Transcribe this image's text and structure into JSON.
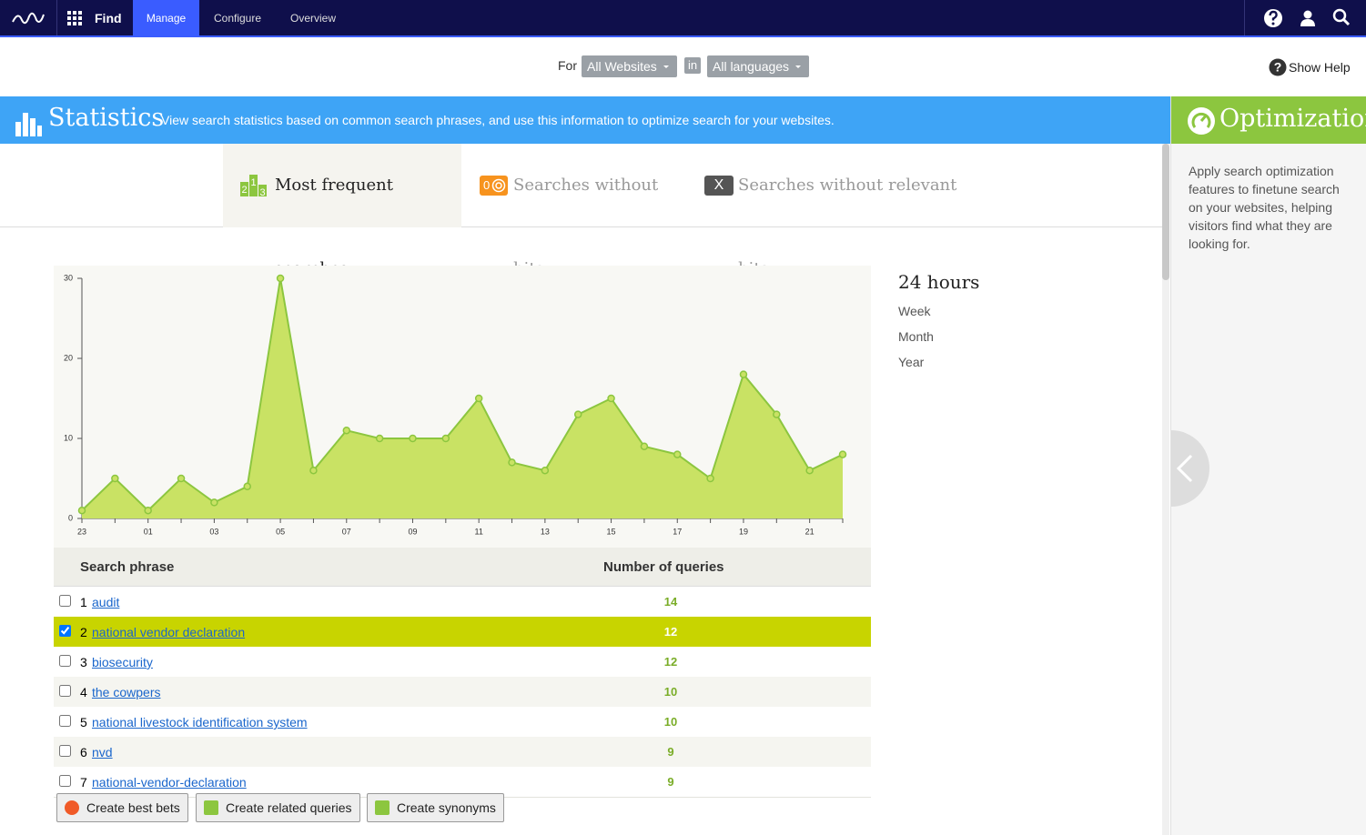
{
  "nav": {
    "app": "Find",
    "tabs": [
      "Manage",
      "Configure",
      "Overview"
    ]
  },
  "filter": {
    "for": "For",
    "site": "All Websites",
    "in": "in",
    "language": "All languages",
    "help": "Show Help"
  },
  "banner": {
    "title": "Statistics",
    "description": "View search statistics based on common search phrases, and use this information to optimize search for your websites."
  },
  "side": {
    "title": "Optimization",
    "text": "Apply search optimization features to finetune search on your websites, helping visitors find what they are looking for."
  },
  "tabs": [
    {
      "icon": [
        "2",
        "1",
        "3"
      ],
      "label": "Most frequent searches"
    },
    {
      "icon": [
        "0"
      ],
      "label": "Searches without hits"
    },
    {
      "icon": [
        "X"
      ],
      "label": "Searches without relevant hits"
    }
  ],
  "periods": [
    "24 hours",
    "Week",
    "Month",
    "Year"
  ],
  "chart_data": {
    "type": "area",
    "categories": [
      "23",
      null,
      "01",
      null,
      "03",
      null,
      "05",
      null,
      "07",
      null,
      "09",
      null,
      "11",
      null,
      "13",
      null,
      "15",
      null,
      "17",
      null,
      "19",
      null,
      "21",
      null
    ],
    "values": [
      1,
      5,
      1,
      5,
      2,
      4,
      30,
      6,
      11,
      10,
      10,
      10,
      15,
      7,
      6,
      13,
      15,
      9,
      8,
      5,
      18,
      13,
      6,
      8
    ],
    "ylim": [
      0,
      30
    ],
    "yticks": [
      0,
      10,
      20,
      30
    ],
    "color": "#c9e264",
    "line_color": "#8cc63f"
  },
  "table": {
    "headers": [
      "Search phrase",
      "Number of queries"
    ],
    "rows": [
      {
        "rank": 1,
        "phrase": "audit",
        "count": 14,
        "checked": false
      },
      {
        "rank": 2,
        "phrase": "national vendor declaration",
        "count": 12,
        "checked": true
      },
      {
        "rank": 3,
        "phrase": "biosecurity",
        "count": 12,
        "checked": false
      },
      {
        "rank": 4,
        "phrase": "the cowpers",
        "count": 10,
        "checked": false
      },
      {
        "rank": 5,
        "phrase": "national livestock identification system",
        "count": 10,
        "checked": false
      },
      {
        "rank": 6,
        "phrase": "nvd",
        "count": 9,
        "checked": false
      },
      {
        "rank": 7,
        "phrase": "national-vendor-declaration",
        "count": 9,
        "checked": false
      }
    ]
  },
  "buttons": [
    "Create best bets",
    "Create related queries",
    "Create synonyms"
  ]
}
